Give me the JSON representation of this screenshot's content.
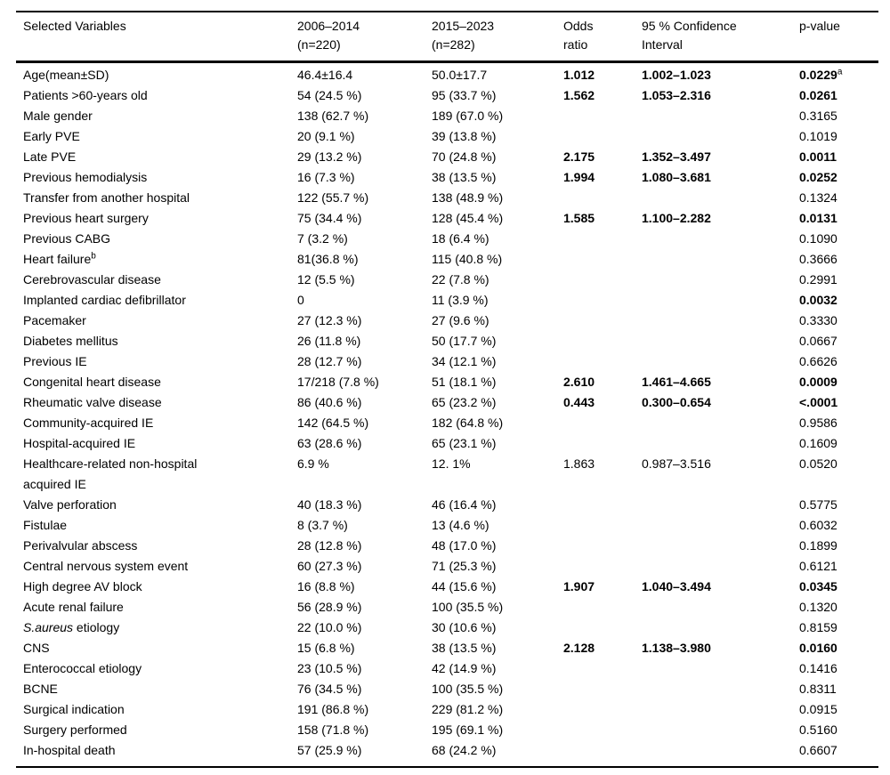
{
  "table": {
    "header": [
      {
        "line1": "Selected Variables",
        "line2": ""
      },
      {
        "line1": "2006–2014",
        "line2": "(n=220)"
      },
      {
        "line1": "2015–2023",
        "line2": "(n=282)"
      },
      {
        "line1": "Odds",
        "line2": "ratio"
      },
      {
        "line1": "95 % Confidence",
        "line2": "Interval"
      },
      {
        "line1": "p-value",
        "line2": ""
      }
    ],
    "rows": [
      {
        "var": "Age(mean±SD)",
        "c1": "46.4±16.4",
        "c2": "50.0±17.7",
        "or": "1.012",
        "ci": "1.002–1.023",
        "p": "0.0229",
        "p_sup": "a",
        "emph": true
      },
      {
        "var": "Patients >60-years old",
        "c1": "54 (24.5 %)",
        "c2": "95 (33.7 %)",
        "or": "1.562",
        "ci": "1.053–2.316",
        "p": "0.0261",
        "emph": true
      },
      {
        "var": "Male gender",
        "c1": "138 (62.7 %)",
        "c2": "189 (67.0 %)",
        "or": "",
        "ci": "",
        "p": "0.3165",
        "emph": false
      },
      {
        "var": "Early PVE",
        "c1": "20 (9.1 %)",
        "c2": "39 (13.8 %)",
        "or": "",
        "ci": "",
        "p": "0.1019",
        "emph": false
      },
      {
        "var": "Late PVE",
        "c1": "29 (13.2 %)",
        "c2": "70 (24.8 %)",
        "or": "2.175",
        "ci": "1.352–3.497",
        "p": "0.0011",
        "emph": true
      },
      {
        "var": "Previous hemodialysis",
        "c1": "16 (7.3 %)",
        "c2": "38 (13.5 %)",
        "or": "1.994",
        "ci": "1.080–3.681",
        "p": "0.0252",
        "emph": true
      },
      {
        "var": "Transfer from another hospital",
        "c1": "122 (55.7 %)",
        "c2": "138 (48.9 %)",
        "or": "",
        "ci": "",
        "p": "0.1324",
        "emph": false
      },
      {
        "var": "Previous heart surgery",
        "c1": "75 (34.4 %)",
        "c2": "128 (45.4 %)",
        "or": "1.585",
        "ci": "1.100–2.282",
        "p": "0.0131",
        "emph": true
      },
      {
        "var": "Previous CABG",
        "c1": "7 (3.2 %)",
        "c2": "18 (6.4 %)",
        "or": "",
        "ci": "",
        "p": "0.1090",
        "emph": false
      },
      {
        "var": "Heart failure",
        "var_sup": "b",
        "c1": "81(36.8 %)",
        "c2": "115 (40.8 %)",
        "or": "",
        "ci": "",
        "p": "0.3666",
        "emph": false
      },
      {
        "var": "Cerebrovascular disease",
        "c1": "12 (5.5 %)",
        "c2": "22 (7.8 %)",
        "or": "",
        "ci": "",
        "p": "0.2991",
        "emph": false
      },
      {
        "var": "Implanted cardiac defibrillator",
        "c1": "0",
        "c2": "11 (3.9 %)",
        "or": "",
        "ci": "",
        "p": "0.0032",
        "emph": true
      },
      {
        "var": "Pacemaker",
        "c1": "27 (12.3 %)",
        "c2": "27 (9.6 %)",
        "or": "",
        "ci": "",
        "p": "0.3330",
        "emph": false
      },
      {
        "var": "Diabetes mellitus",
        "c1": "26 (11.8 %)",
        "c2": "50 (17.7 %)",
        "or": "",
        "ci": "",
        "p": "0.0667",
        "emph": false
      },
      {
        "var": "Previous IE",
        "c1": "28 (12.7 %)",
        "c2": "34 (12.1 %)",
        "or": "",
        "ci": "",
        "p": "0.6626",
        "emph": false
      },
      {
        "var": "Congenital heart disease",
        "c1": "17/218 (7.8 %)",
        "c2": "51 (18.1 %)",
        "or": "2.610",
        "ci": "1.461–4.665",
        "p": "0.0009",
        "emph": true
      },
      {
        "var": "Rheumatic valve disease",
        "c1": "86 (40.6 %)",
        "c2": "65 (23.2 %)",
        "or": "0.443",
        "ci": "0.300–0.654",
        "p": "<.0001",
        "emph": true
      },
      {
        "var": "Community-acquired IE",
        "c1": "142 (64.5 %)",
        "c2": "182 (64.8 %)",
        "or": "",
        "ci": "",
        "p": "0.9586",
        "emph": false
      },
      {
        "var": "Hospital-acquired IE",
        "c1": "63 (28.6 %)",
        "c2": "65 (23.1 %)",
        "or": "",
        "ci": "",
        "p": "0.1609",
        "emph": false
      },
      {
        "var": "Healthcare-related non-hospital acquired IE",
        "c1": "6.9 %",
        "c2": "12. 1%",
        "or": "1.863",
        "ci": "0.987–3.516",
        "p": "0.0520",
        "emph": false
      },
      {
        "var": "Valve perforation",
        "c1": "40 (18.3 %)",
        "c2": "46 (16.4 %)",
        "or": "",
        "ci": "",
        "p": "0.5775",
        "emph": false
      },
      {
        "var": "Fistulae",
        "c1": "8 (3.7 %)",
        "c2": "13 (4.6 %)",
        "or": "",
        "ci": "",
        "p": "0.6032",
        "emph": false
      },
      {
        "var": "Perivalvular abscess",
        "c1": "28 (12.8 %)",
        "c2": "48 (17.0 %)",
        "or": "",
        "ci": "",
        "p": "0.1899",
        "emph": false
      },
      {
        "var": "Central nervous system event",
        "c1": "60 (27.3 %)",
        "c2": "71 (25.3 %)",
        "or": "",
        "ci": "",
        "p": "0.6121",
        "emph": false
      },
      {
        "var": "High degree AV block",
        "c1": "16 (8.8 %)",
        "c2": "44 (15.6 %)",
        "or": "1.907",
        "ci": "1.040–3.494",
        "p": "0.0345",
        "emph": true
      },
      {
        "var": "Acute renal failure",
        "c1": "56 (28.9 %)",
        "c2": "100 (35.5 %)",
        "or": "",
        "ci": "",
        "p": "0.1320",
        "emph": false
      },
      {
        "var_italic": "S.aureus",
        "var": " etiology",
        "c1": "22 (10.0 %)",
        "c2": "30 (10.6 %)",
        "or": "",
        "ci": "",
        "p": "0.8159",
        "emph": false
      },
      {
        "var": "CNS",
        "c1": "15 (6.8 %)",
        "c2": "38 (13.5 %)",
        "or": "2.128",
        "ci": "1.138–3.980",
        "p": "0.0160",
        "emph": true
      },
      {
        "var": "Enterococcal etiology",
        "c1": "23 (10.5 %)",
        "c2": "42 (14.9 %)",
        "or": "",
        "ci": "",
        "p": "0.1416",
        "emph": false
      },
      {
        "var": "BCNE",
        "c1": "76 (34.5 %)",
        "c2": "100 (35.5 %)",
        "or": "",
        "ci": "",
        "p": "0.8311",
        "emph": false
      },
      {
        "var": "Surgical indication",
        "c1": "191 (86.8 %)",
        "c2": "229 (81.2 %)",
        "or": "",
        "ci": "",
        "p": "0.0915",
        "emph": false
      },
      {
        "var": "Surgery performed",
        "c1": "158 (71.8 %)",
        "c2": "195 (69.1 %)",
        "or": "",
        "ci": "",
        "p": "0.5160",
        "emph": false
      },
      {
        "var": "In-hospital death",
        "c1": "57 (25.9 %)",
        "c2": "68 (24.2 %)",
        "or": "",
        "ci": "",
        "p": "0.6607",
        "emph": false
      }
    ]
  }
}
